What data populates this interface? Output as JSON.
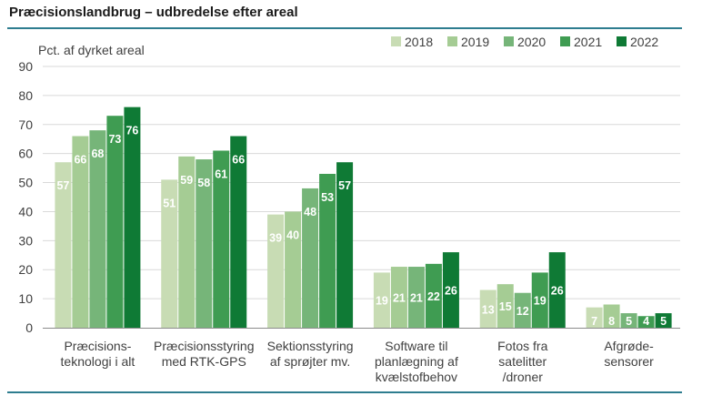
{
  "title": "Præcisionslandbrug – udbredelse efter areal",
  "chart_data": {
    "type": "bar",
    "ylabel": "Pct. af dyrket areal",
    "ylim": [
      0,
      90
    ],
    "yticks": [
      "0",
      "10",
      "20",
      "30",
      "40",
      "50",
      "60",
      "70",
      "80",
      "90"
    ],
    "grid": true,
    "legend": "top-right",
    "categories": [
      [
        "Præcisions-",
        "teknologi i alt"
      ],
      [
        "Præcisionsstyring",
        "med RTK-GPS"
      ],
      [
        "Sektionsstyring",
        "af sprøjter mv."
      ],
      [
        "Software til",
        "planlægning af",
        "kvælstofbehov"
      ],
      [
        "Fotos fra",
        "satelitter",
        "/droner"
      ],
      [
        "Afgrøde-",
        "sensorer"
      ]
    ],
    "series": [
      {
        "name": "2018",
        "color": "#c8dcb4",
        "values": [
          57,
          51,
          39,
          19,
          13,
          7
        ]
      },
      {
        "name": "2019",
        "color": "#a5cc94",
        "values": [
          66,
          59,
          40,
          21,
          15,
          8
        ]
      },
      {
        "name": "2020",
        "color": "#76b579",
        "values": [
          68,
          58,
          48,
          21,
          12,
          5
        ]
      },
      {
        "name": "2021",
        "color": "#3f9c52",
        "values": [
          73,
          61,
          53,
          22,
          19,
          4
        ]
      },
      {
        "name": "2022",
        "color": "#0f7a35",
        "values": [
          76,
          66,
          57,
          26,
          26,
          5
        ]
      }
    ]
  }
}
